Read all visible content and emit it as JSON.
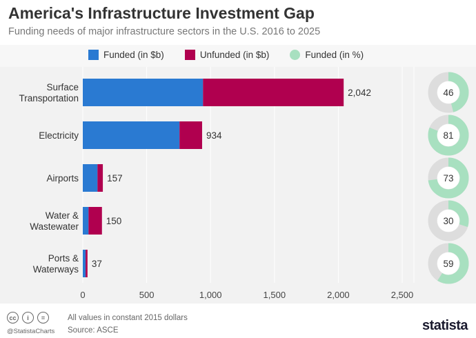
{
  "header": {
    "title": "America's Infrastructure Investment Gap",
    "subtitle": "Funding needs of major infrastructure sectors in the U.S. 2016 to 2025"
  },
  "legend": [
    {
      "label": "Funded (in $b)",
      "color": "#2a7ad2",
      "shape": "square"
    },
    {
      "label": "Unfunded (in $b)",
      "color": "#b0004f",
      "shape": "square"
    },
    {
      "label": "Funded (in %)",
      "color": "#a8e0c0",
      "shape": "circle"
    }
  ],
  "chart_data": {
    "type": "bar",
    "orientation": "horizontal",
    "stacked": true,
    "title": "America's Infrastructure Investment Gap",
    "categories": [
      "Surface\nTransportation",
      "Electricity",
      "Airports",
      "Water &\nWastewater",
      "Ports &\nWaterways"
    ],
    "series": [
      {
        "name": "Funded (in $b)",
        "values": [
          941,
          757,
          115,
          45,
          22
        ],
        "color": "#2a7ad2"
      },
      {
        "name": "Unfunded (in $b)",
        "values": [
          1101,
          177,
          42,
          105,
          15
        ],
        "color": "#b0004f"
      }
    ],
    "totals": [
      "2,042",
      "934",
      "157",
      "150",
      "37"
    ],
    "funded_percent": [
      46,
      81,
      73,
      30,
      59
    ],
    "xlim": [
      0,
      2500
    ],
    "xticks": [
      0,
      500,
      1000,
      1500,
      2000,
      2500
    ],
    "xtick_labels": [
      "0",
      "500",
      "1,000",
      "1,500",
      "2,000",
      "2,500"
    ],
    "grid": true,
    "colors": {
      "donut_fill": "#a8e0c0",
      "donut_track": "#dddddd",
      "grid": "#ffffff",
      "background": "#f2f2f2"
    }
  },
  "footer": {
    "note": "All values in constant 2015 dollars",
    "source": "Source: ASCE",
    "handle": "@StatistaCharts",
    "brand": "statista",
    "cc_icons": [
      "cc",
      "i",
      "="
    ]
  }
}
